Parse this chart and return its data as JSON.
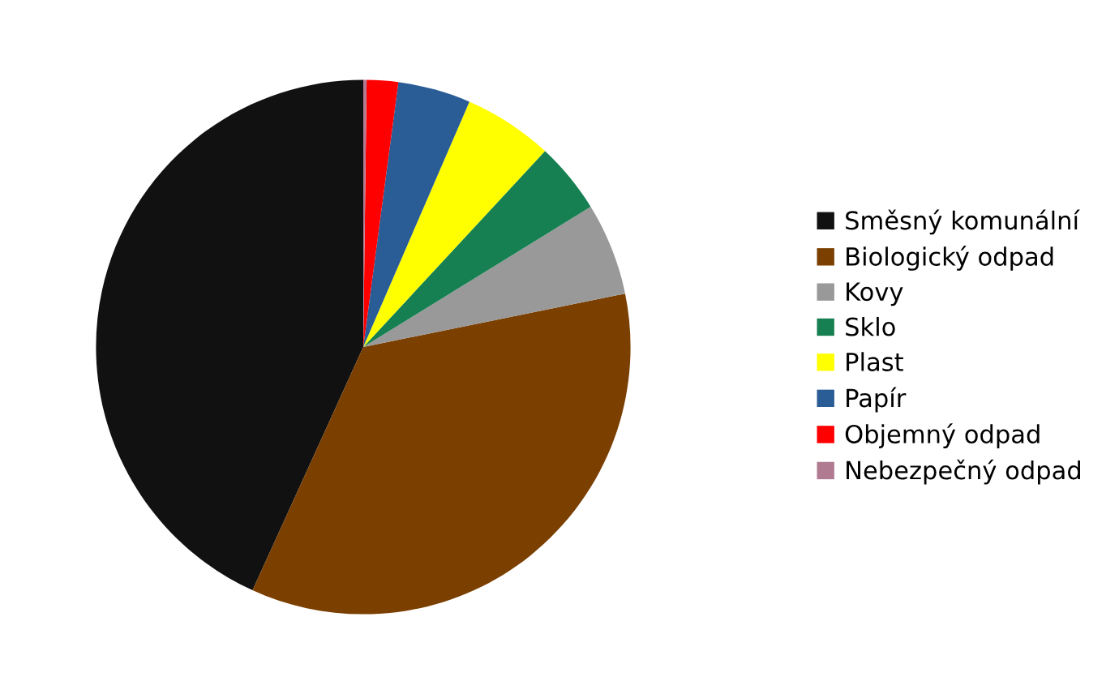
{
  "chart_data": {
    "type": "pie",
    "categories": [
      "Směsný komunální",
      "Biologický odpad",
      "Kovy",
      "Sklo",
      "Plast",
      "Papír",
      "Objemný odpad",
      "Nebezpečný odpad"
    ],
    "values": [
      43.2,
      35.0,
      5.6,
      4.3,
      5.4,
      4.4,
      1.9,
      0.2
    ],
    "colors": [
      "#111111",
      "#7b3f00",
      "#999999",
      "#178052",
      "#ffff00",
      "#2a5c96",
      "#ff0000",
      "#b07a90"
    ],
    "legend": "right"
  }
}
